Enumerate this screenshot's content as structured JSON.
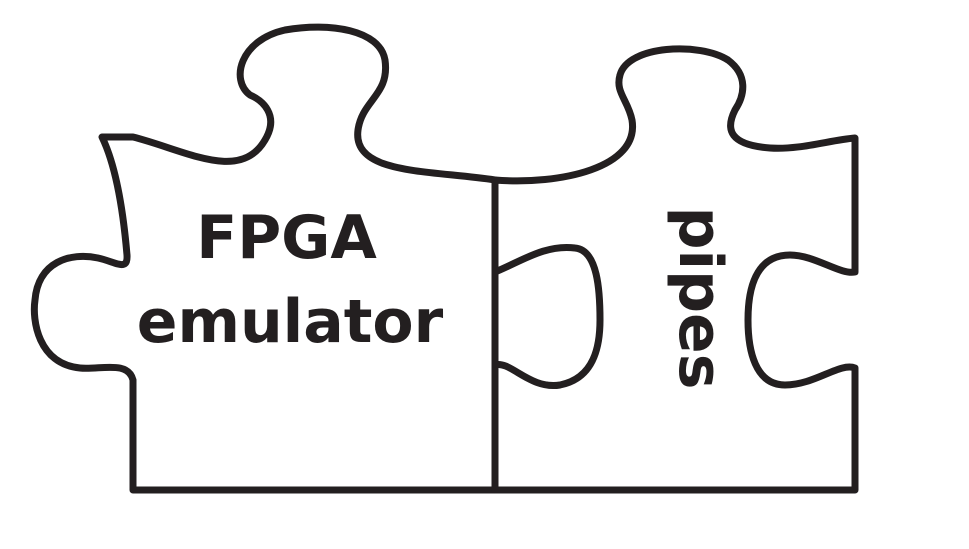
{
  "diagram": {
    "pieces": [
      {
        "label_lines": [
          "FPGA",
          "emulator"
        ]
      },
      {
        "label": "pipes"
      }
    ],
    "colors": {
      "outline": "#231f20",
      "background": "#ffffff",
      "text": "#231f20"
    }
  }
}
